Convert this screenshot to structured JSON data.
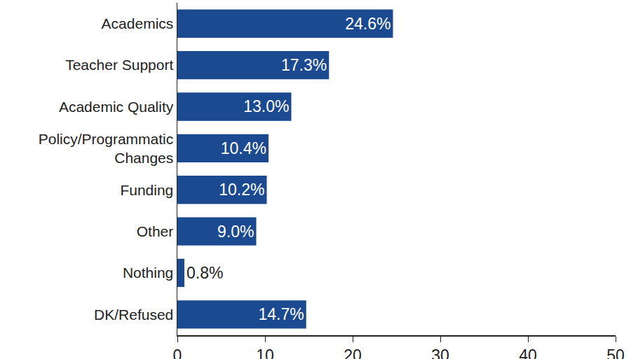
{
  "chart_data": {
    "type": "bar",
    "orientation": "horizontal",
    "categories": [
      "Academics",
      "Teacher Support",
      "Academic Quality",
      "Policy/Programmatic\nChanges",
      "Funding",
      "Other",
      "Nothing",
      "DK/Refused"
    ],
    "values": [
      24.6,
      17.3,
      13.0,
      10.4,
      10.2,
      9.0,
      0.8,
      14.7
    ],
    "value_labels": [
      "24.6%",
      "17.3%",
      "13.0%",
      "10.4%",
      "10.2%",
      "9.0%",
      "0.8%",
      "14.7%"
    ],
    "color": "#1b4a91",
    "xlim": [
      0,
      50
    ],
    "xticks": [
      0,
      10,
      20,
      30,
      40,
      50
    ],
    "grid": false,
    "data_labels": true
  }
}
